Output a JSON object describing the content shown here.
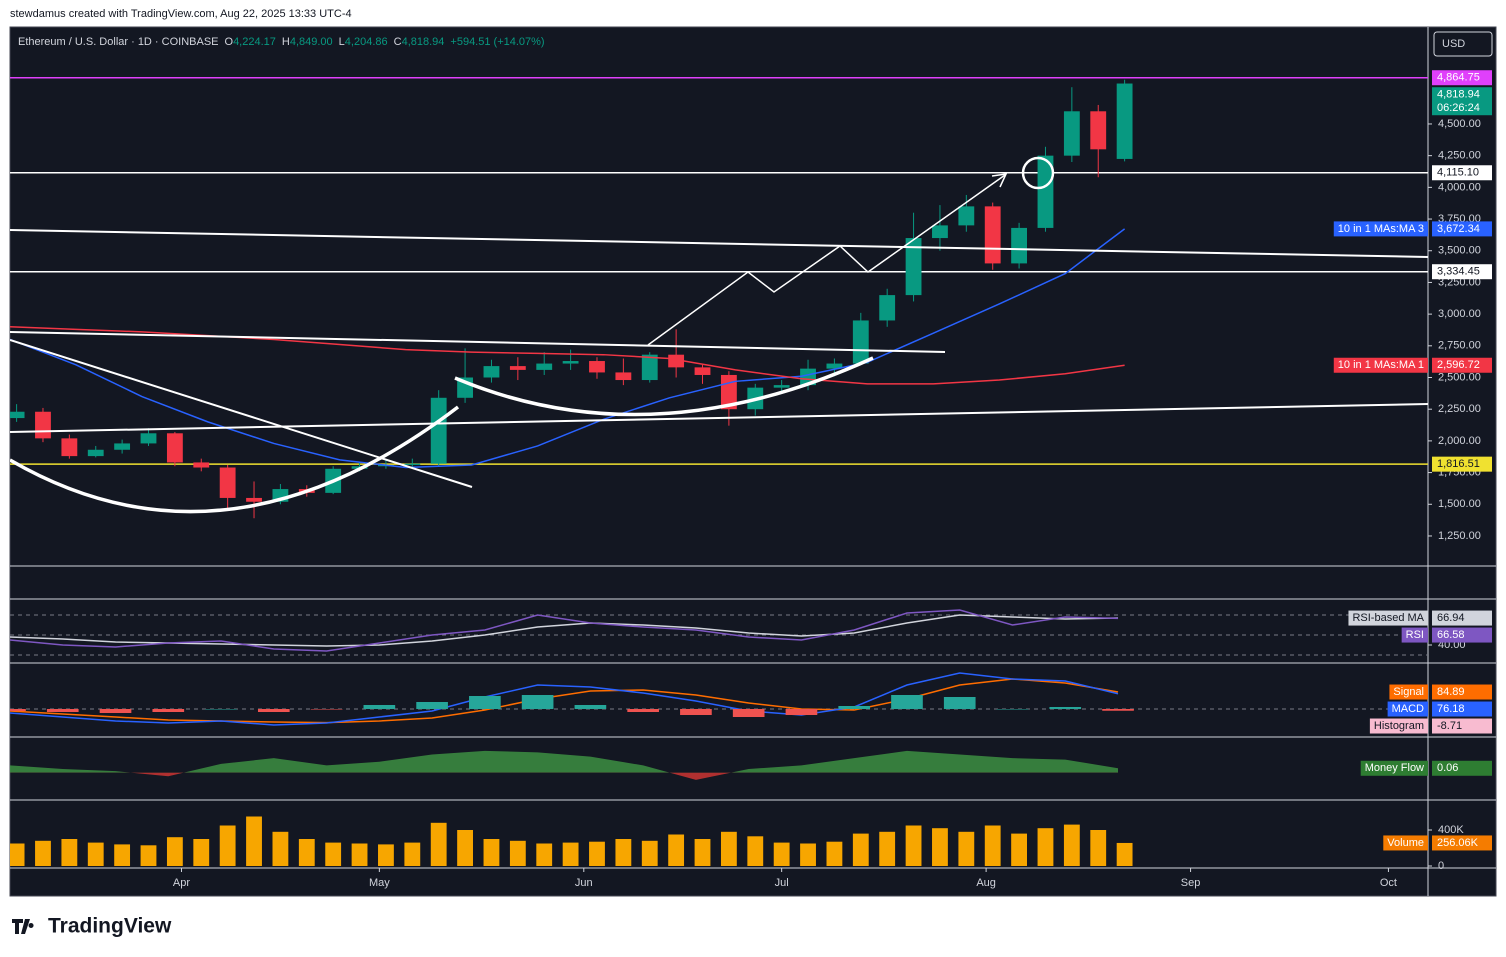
{
  "header": {
    "credit": "stewdamus created with TradingView.com, Aug 22, 2025 13:33 UTC-4",
    "currency": "USD"
  },
  "legend": {
    "symbol": "Ethereum / U.S. Dollar · 1D · COINBASE",
    "items": [
      {
        "key": "O",
        "value": "4,224.17"
      },
      {
        "key": "H",
        "value": "4,849.00"
      },
      {
        "key": "L",
        "value": "4,204.86"
      },
      {
        "key": "C",
        "value": "4,818.94"
      }
    ],
    "change": "+594.51 (+14.07%)"
  },
  "footer": {
    "brand": "TradingView"
  },
  "chart_data": [
    {
      "type": "candlestick",
      "x": [
        1,
        5,
        9,
        13,
        17,
        21,
        25,
        29,
        33,
        37,
        41,
        45,
        49,
        53,
        57,
        61,
        65,
        69,
        73,
        77,
        81,
        85,
        89,
        93,
        97,
        101,
        105,
        109,
        113,
        117,
        121,
        125,
        129,
        133,
        137,
        141,
        145,
        149,
        153,
        157,
        161,
        165,
        169
      ],
      "open": [
        2180,
        2230,
        2020,
        1880,
        1930,
        1980,
        2060,
        1830,
        1790,
        1550,
        1520,
        1620,
        1590,
        1780,
        1800,
        1810,
        1820,
        2340,
        2500,
        2590,
        2560,
        2610,
        2630,
        2540,
        2480,
        2680,
        2580,
        2520,
        2250,
        2420,
        2440,
        2570,
        2610,
        2950,
        3150,
        3600,
        3700,
        3850,
        3400,
        3680,
        4250,
        4600,
        4224.17
      ],
      "high": [
        2290,
        2260,
        2050,
        1960,
        2010,
        2100,
        2070,
        1860,
        1810,
        1680,
        1660,
        1650,
        1800,
        1830,
        1850,
        1860,
        2400,
        2730,
        2640,
        2660,
        2700,
        2720,
        2660,
        2650,
        2700,
        2880,
        2600,
        2550,
        2450,
        2480,
        2640,
        2650,
        3010,
        3200,
        3800,
        3860,
        3940,
        3880,
        3720,
        4320,
        4790,
        4650,
        4849
      ],
      "low": [
        2150,
        1990,
        1860,
        1870,
        1900,
        1960,
        1800,
        1760,
        1450,
        1390,
        1500,
        1560,
        1580,
        1760,
        1780,
        1790,
        1800,
        2300,
        2460,
        2480,
        2520,
        2560,
        2490,
        2440,
        2460,
        2500,
        2450,
        2120,
        2200,
        2380,
        2400,
        2510,
        2600,
        2900,
        3100,
        3500,
        3650,
        3350,
        3360,
        3650,
        4200,
        4080,
        4204.86
      ],
      "close": [
        2230,
        2020,
        1880,
        1930,
        1980,
        2060,
        1830,
        1790,
        1550,
        1520,
        1620,
        1590,
        1780,
        1800,
        1810,
        1820,
        2340,
        2500,
        2590,
        2560,
        2610,
        2630,
        2540,
        2480,
        2680,
        2580,
        2520,
        2250,
        2420,
        2440,
        2570,
        2610,
        2950,
        3150,
        3600,
        3700,
        3850,
        3400,
        3680,
        4250,
        4600,
        4300,
        4818.94
      ],
      "up_color": "#089981",
      "down_color": "#f23645",
      "last_price_label": "4,818.94",
      "countdown": "06:26:24",
      "xlim": [
        0,
        215
      ],
      "xticks": [
        {
          "value": 26,
          "label": "Apr"
        },
        {
          "value": 56,
          "label": "May"
        },
        {
          "value": 87,
          "label": "Jun"
        },
        {
          "value": 117,
          "label": "Jul"
        },
        {
          "value": 148,
          "label": "Aug"
        },
        {
          "value": 179,
          "label": "Sep"
        },
        {
          "value": 209,
          "label": "Oct"
        }
      ],
      "ylim": [
        1021,
        5257
      ],
      "yticks": [
        {
          "value": 1250,
          "label": "1,250.00"
        },
        {
          "value": 1500,
          "label": "1,500.00"
        },
        {
          "value": 1750,
          "label": "1,750.00"
        },
        {
          "value": 2000,
          "label": "2,000.00"
        },
        {
          "value": 2250,
          "label": "2,250.00"
        },
        {
          "value": 2500,
          "label": "2,500.00"
        },
        {
          "value": 2750,
          "label": "2,750.00"
        },
        {
          "value": 3000,
          "label": "3,000.00"
        },
        {
          "value": 3250,
          "label": "3,250.00"
        },
        {
          "value": 3500,
          "label": "3,500.00"
        },
        {
          "value": 3750,
          "label": "3,750.00"
        },
        {
          "value": 4000,
          "label": "4,000.00"
        },
        {
          "value": 4250,
          "label": "4,250.00"
        },
        {
          "value": 4500,
          "label": "4,500.00"
        }
      ],
      "levels": [
        {
          "value": 4864.75,
          "label": "4,864.75",
          "color": "#e040fb"
        },
        {
          "value": 4115.1,
          "label": "4,115.10",
          "color": "#ffffff"
        },
        {
          "value": 3334.45,
          "label": "3,334.45",
          "color": "#ffffff"
        },
        {
          "value": 1816.51,
          "label": "1,816.51",
          "color": "#f0e130"
        }
      ],
      "series": [
        {
          "name": "10 in 1 MAs:MA 3",
          "color": "#2962ff",
          "kind": "line",
          "x": [
            0,
            10,
            20,
            30,
            40,
            50,
            60,
            70,
            80,
            90,
            100,
            110,
            120,
            130,
            140,
            150,
            160,
            169
          ],
          "values": [
            2800,
            2600,
            2350,
            2150,
            1980,
            1850,
            1790,
            1810,
            1960,
            2170,
            2340,
            2470,
            2510,
            2620,
            2850,
            3080,
            3320,
            3672.34
          ],
          "last_value_label": "3,672.34"
        },
        {
          "name": "10 in 1 MAs:MA 1",
          "color": "#f23645",
          "kind": "line",
          "x": [
            0,
            10,
            20,
            30,
            40,
            50,
            60,
            70,
            80,
            90,
            100,
            110,
            120,
            130,
            140,
            150,
            160,
            169
          ],
          "values": [
            2900,
            2880,
            2860,
            2830,
            2800,
            2760,
            2720,
            2700,
            2690,
            2680,
            2650,
            2560,
            2490,
            2450,
            2450,
            2480,
            2530,
            2596.72
          ],
          "last_value_label": "2,596.72"
        }
      ]
    },
    {
      "type": "line",
      "x": [
        0,
        8,
        16,
        24,
        32,
        40,
        48,
        56,
        64,
        72,
        80,
        88,
        96,
        104,
        112,
        120,
        128,
        136,
        144,
        152,
        160,
        168
      ],
      "xlim": [
        0,
        215
      ],
      "ylim": [
        25,
        85
      ],
      "yticks": [
        {
          "value": 40,
          "label": "40.00"
        }
      ],
      "levels": [
        30,
        50,
        70
      ],
      "series": [
        {
          "name": "RSI-based MA",
          "color": "#d1d4dc",
          "kind": "line",
          "values": [
            48,
            46,
            43,
            42,
            41,
            40,
            39,
            40,
            44,
            50,
            58,
            62,
            60,
            57,
            52,
            49,
            52,
            62,
            70,
            68,
            66,
            66.94
          ],
          "last_value_label": "66.94"
        },
        {
          "name": "RSI",
          "color": "#7e57c2",
          "kind": "line",
          "values": [
            45,
            40,
            38,
            42,
            44,
            36,
            34,
            42,
            50,
            55,
            70,
            62,
            58,
            55,
            48,
            45,
            55,
            72,
            75,
            60,
            68,
            66.58
          ],
          "last_value_label": "66.58"
        }
      ]
    },
    {
      "type": "line",
      "x": [
        0,
        8,
        16,
        24,
        32,
        40,
        48,
        56,
        64,
        72,
        80,
        88,
        96,
        104,
        112,
        120,
        128,
        136,
        144,
        152,
        160,
        168
      ],
      "xlim": [
        0,
        215
      ],
      "ylim": [
        -130,
        220
      ],
      "levels": [
        0
      ],
      "series": [
        {
          "name": "Signal",
          "color": "#ff6d00",
          "kind": "line",
          "values": [
            -10,
            -25,
            -40,
            -55,
            -60,
            -65,
            -68,
            -60,
            -45,
            -5,
            50,
            90,
            95,
            70,
            30,
            0,
            -5,
            50,
            120,
            150,
            130,
            84.89
          ],
          "last_value_label": "84.89"
        },
        {
          "name": "MACD",
          "color": "#2962ff",
          "kind": "line",
          "values": [
            -20,
            -40,
            -60,
            -70,
            -60,
            -80,
            -70,
            -40,
            -10,
            60,
            120,
            110,
            80,
            40,
            -10,
            -30,
            10,
            120,
            180,
            150,
            140,
            76.18
          ],
          "last_value_label": "76.18"
        },
        {
          "name": "Histogram",
          "color": "#f8bbd0",
          "kind": "bar",
          "up_color": "#26a69a",
          "down_color": "#ef5350",
          "values": [
            -10,
            -15,
            -20,
            -15,
            0,
            -15,
            -2,
            20,
            35,
            65,
            70,
            20,
            -15,
            -30,
            -40,
            -30,
            15,
            70,
            60,
            0,
            10,
            -8.71
          ],
          "last_value_label": "-8.71"
        }
      ]
    },
    {
      "type": "line",
      "x": [
        0,
        8,
        16,
        24,
        32,
        40,
        48,
        56,
        64,
        72,
        80,
        88,
        96,
        104,
        112,
        120,
        128,
        136,
        144,
        152,
        160,
        168
      ],
      "xlim": [
        0,
        215
      ],
      "ylim": [
        -0.35,
        0.45
      ],
      "series": [
        {
          "name": "Money Flow",
          "color": "#2e7d32",
          "kind": "area",
          "up_color": "#43a047",
          "down_color": "#e53935",
          "values": [
            0.1,
            0.05,
            0.02,
            -0.05,
            0.12,
            0.2,
            0.1,
            0.15,
            0.25,
            0.3,
            0.28,
            0.22,
            0.1,
            -0.1,
            0.05,
            0.1,
            0.2,
            0.3,
            0.25,
            0.2,
            0.18,
            0.06
          ],
          "last_value_label": "0.06"
        }
      ]
    },
    {
      "type": "bar",
      "name": "Volume",
      "color": "#f7a600",
      "label_color": "#f57c00",
      "x": [
        1,
        5,
        9,
        13,
        17,
        21,
        25,
        29,
        33,
        37,
        41,
        45,
        49,
        53,
        57,
        61,
        65,
        69,
        73,
        77,
        81,
        85,
        89,
        93,
        97,
        101,
        105,
        109,
        113,
        117,
        121,
        125,
        129,
        133,
        137,
        141,
        145,
        149,
        153,
        157,
        161,
        165,
        169
      ],
      "values": [
        250000,
        280000,
        300000,
        260000,
        240000,
        230000,
        320000,
        300000,
        450000,
        550000,
        380000,
        300000,
        260000,
        250000,
        240000,
        260000,
        480000,
        400000,
        300000,
        280000,
        250000,
        260000,
        270000,
        300000,
        280000,
        350000,
        300000,
        380000,
        330000,
        260000,
        250000,
        270000,
        360000,
        380000,
        450000,
        420000,
        380000,
        450000,
        360000,
        420000,
        460000,
        400000,
        256060
      ],
      "last_value_label": "256.06K",
      "xlim": [
        0,
        215
      ],
      "ylim": [
        0,
        600000
      ],
      "yticks": [
        0,
        {
          "value": 400000,
          "label": "400K"
        }
      ]
    }
  ]
}
